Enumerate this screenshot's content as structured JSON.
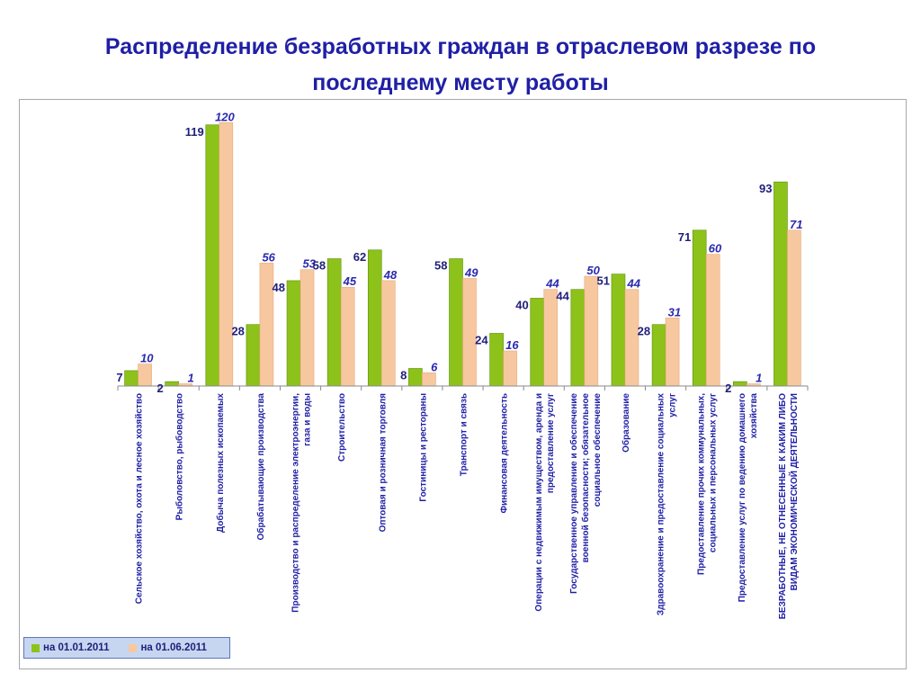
{
  "title": "Распределение безработных граждан в отраслевом разрезе по последнему месту работы",
  "colors": {
    "series1": "#8cc21a",
    "series1_edge": "#5e8f08",
    "series2": "#f7c8a0",
    "series2_edge": "#e8a878",
    "label1": "#1f1f7a",
    "label2": "#2a2ab0",
    "axis_label": "#1f1fa6"
  },
  "chart_data": {
    "type": "bar",
    "title": "Распределение безработных граждан в отраслевом разрезе по последнему месту работы",
    "xlabel": "",
    "ylabel": "",
    "ylim": [
      0,
      123
    ],
    "grid": false,
    "legend": "bottom-left",
    "categories": [
      "Сельское хозяйство, охота и лесное хозяйство",
      "Рыболовство, рыбоводство",
      "Добыча полезных ископаемых",
      "Обрабатывающие производства",
      "Производство и распределение электроэнергии, газа и воды",
      "Строительство",
      "Оптовая и розничная торговля",
      "Гостиницы и рестораны",
      "Транспорт и связь",
      "Финансовая деятельность",
      "Операции с недвижимым имуществом, аренда и предоставление услуг",
      "Государственное управление и обеспечение военной безопасности; обязательное социальное обеспечение",
      "Образование",
      "Здравоохранение и предоставление социальных услуг",
      "Предоставление прочих коммунальных, социальных и персональных услуг",
      "Предоставление услуг по ведению домашнего хозяйства",
      "БЕЗРАБОТНЫЕ, НЕ ОТНЕСЕННЫЕ К КАКИМ ЛИБО ВИДАМ ЭКОНОМИЧЕСКОЙ ДЕЯТЕЛЬНОСТИ"
    ],
    "series": [
      {
        "name": "на 01.01.2011",
        "values": [
          7,
          2,
          119,
          28,
          48,
          58,
          62,
          8,
          58,
          24,
          40,
          44,
          51,
          28,
          71,
          2,
          93
        ]
      },
      {
        "name": "на 01.06.2011",
        "values": [
          10,
          1,
          120,
          56,
          53,
          45,
          48,
          6,
          49,
          16,
          44,
          50,
          44,
          31,
          60,
          1,
          71
        ]
      }
    ]
  }
}
